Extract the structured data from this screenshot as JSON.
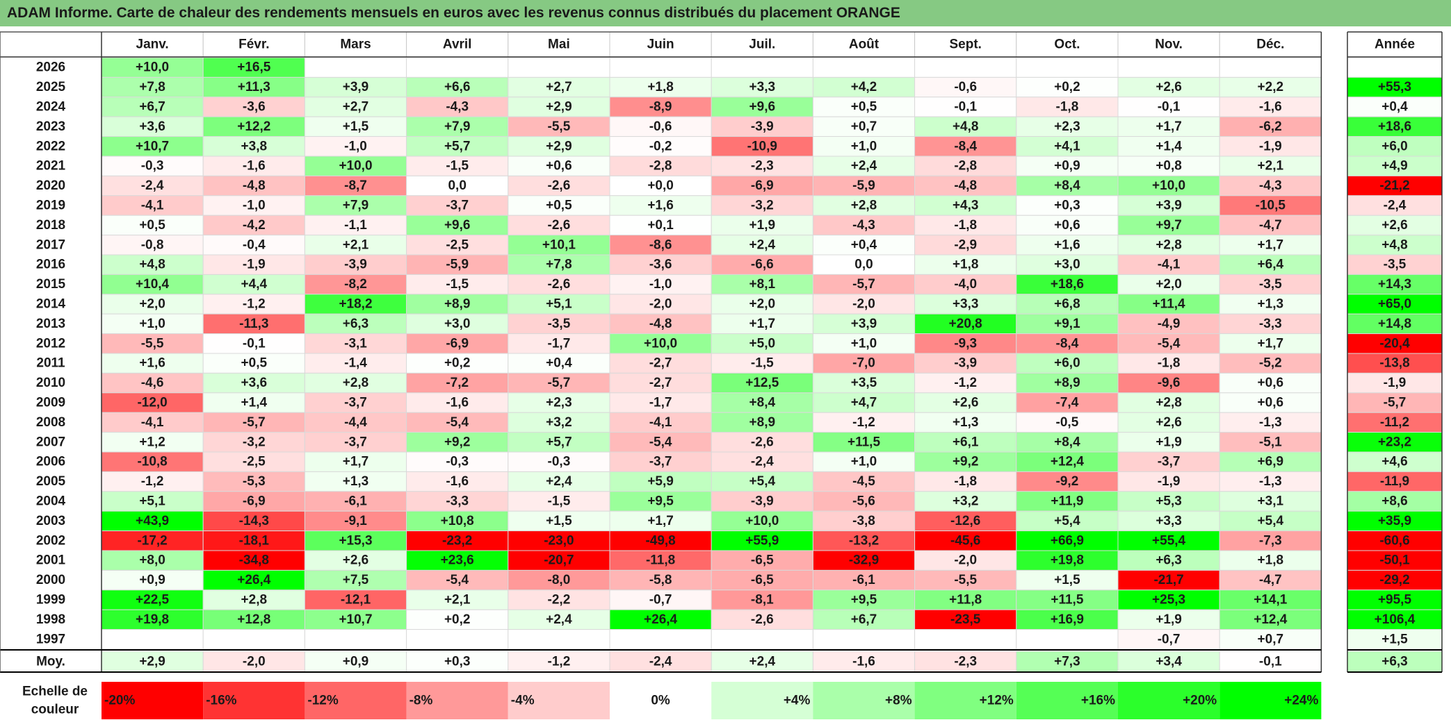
{
  "chart_data": {
    "type": "heatmap",
    "title": "ADAM Informe. Carte de chaleur des rendements mensuels en euros avec les revenus connus distribués du placement ORANGE",
    "months": [
      "Janv.",
      "Févr.",
      "Mars",
      "Avril",
      "Mai",
      "Juin",
      "Juil.",
      "Août",
      "Sept.",
      "Oct.",
      "Nov.",
      "Déc."
    ],
    "year_col_label": "Année",
    "avg_row_label": "Moy.",
    "rows": [
      {
        "year": "2026",
        "values": [
          "+10,0",
          "+16,5",
          "",
          "",
          "",
          "",
          "",
          "",
          "",
          "",
          "",
          ""
        ],
        "annual": ""
      },
      {
        "year": "2025",
        "values": [
          "+7,8",
          "+11,3",
          "+3,9",
          "+6,6",
          "+2,7",
          "+1,8",
          "+3,3",
          "+4,2",
          "-0,6",
          "+0,2",
          "+2,6",
          "+2,2"
        ],
        "annual": "+55,3"
      },
      {
        "year": "2024",
        "values": [
          "+6,7",
          "-3,6",
          "+2,7",
          "-4,3",
          "+2,9",
          "-8,9",
          "+9,6",
          "+0,5",
          "-0,1",
          "-1,8",
          "-0,1",
          "-1,6"
        ],
        "annual": "+0,4"
      },
      {
        "year": "2023",
        "values": [
          "+3,6",
          "+12,2",
          "+1,5",
          "+7,9",
          "-5,5",
          "-0,6",
          "-3,9",
          "+0,7",
          "+4,8",
          "+2,3",
          "+1,7",
          "-6,2"
        ],
        "annual": "+18,6"
      },
      {
        "year": "2022",
        "values": [
          "+10,7",
          "+3,8",
          "-1,0",
          "+5,7",
          "+2,9",
          "-0,2",
          "-10,9",
          "+1,0",
          "-8,4",
          "+4,1",
          "+1,4",
          "-1,9"
        ],
        "annual": "+6,0"
      },
      {
        "year": "2021",
        "values": [
          "-0,3",
          "-1,6",
          "+10,0",
          "-1,5",
          "+0,6",
          "-2,8",
          "-2,3",
          "+2,4",
          "-2,8",
          "+0,9",
          "+0,8",
          "+2,1"
        ],
        "annual": "+4,9"
      },
      {
        "year": "2020",
        "values": [
          "-2,4",
          "-4,8",
          "-8,7",
          "0,0",
          "-2,6",
          "+0,0",
          "-6,9",
          "-5,9",
          "-4,8",
          "+8,4",
          "+10,0",
          "-4,3"
        ],
        "annual": "-21,2"
      },
      {
        "year": "2019",
        "values": [
          "-4,1",
          "-1,0",
          "+7,9",
          "-3,7",
          "+0,5",
          "+1,6",
          "-3,2",
          "+2,8",
          "+4,3",
          "+0,3",
          "+3,9",
          "-10,5"
        ],
        "annual": "-2,4"
      },
      {
        "year": "2018",
        "values": [
          "+0,5",
          "-4,2",
          "-1,1",
          "+9,6",
          "-2,6",
          "+0,1",
          "+1,9",
          "-4,3",
          "-1,8",
          "+0,6",
          "+9,7",
          "-4,7"
        ],
        "annual": "+2,6"
      },
      {
        "year": "2017",
        "values": [
          "-0,8",
          "-0,4",
          "+2,1",
          "-2,5",
          "+10,1",
          "-8,6",
          "+2,4",
          "+0,4",
          "-2,9",
          "+1,6",
          "+2,8",
          "+1,7"
        ],
        "annual": "+4,8"
      },
      {
        "year": "2016",
        "values": [
          "+4,8",
          "-1,9",
          "-3,9",
          "-5,9",
          "+7,8",
          "-3,6",
          "-6,6",
          "0,0",
          "+1,8",
          "+3,0",
          "-4,1",
          "+6,4"
        ],
        "annual": "-3,5"
      },
      {
        "year": "2015",
        "values": [
          "+10,4",
          "+4,4",
          "-8,2",
          "-1,5",
          "-2,6",
          "-1,0",
          "+8,1",
          "-5,7",
          "-4,0",
          "+18,6",
          "+2,0",
          "-3,5"
        ],
        "annual": "+14,3"
      },
      {
        "year": "2014",
        "values": [
          "+2,0",
          "-1,2",
          "+18,2",
          "+8,9",
          "+5,1",
          "-2,0",
          "+2,0",
          "-2,0",
          "+3,3",
          "+6,8",
          "+11,4",
          "+1,3"
        ],
        "annual": "+65,0"
      },
      {
        "year": "2013",
        "values": [
          "+1,0",
          "-11,3",
          "+6,3",
          "+3,0",
          "-3,5",
          "-4,8",
          "+1,7",
          "+3,9",
          "+20,8",
          "+9,1",
          "-4,9",
          "-3,3"
        ],
        "annual": "+14,8"
      },
      {
        "year": "2012",
        "values": [
          "-5,5",
          "-0,1",
          "-3,1",
          "-6,9",
          "-1,7",
          "+10,0",
          "+5,0",
          "+1,0",
          "-9,3",
          "-8,4",
          "-5,4",
          "+1,7"
        ],
        "annual": "-20,4"
      },
      {
        "year": "2011",
        "values": [
          "+1,6",
          "+0,5",
          "-1,4",
          "+0,2",
          "+0,4",
          "-2,7",
          "-1,5",
          "-7,0",
          "-3,9",
          "+6,0",
          "-1,8",
          "-5,2"
        ],
        "annual": "-13,8"
      },
      {
        "year": "2010",
        "values": [
          "-4,6",
          "+3,6",
          "+2,8",
          "-7,2",
          "-5,7",
          "-2,7",
          "+12,5",
          "+3,5",
          "-1,2",
          "+8,9",
          "-9,6",
          "+0,6"
        ],
        "annual": "-1,9"
      },
      {
        "year": "2009",
        "values": [
          "-12,0",
          "+1,4",
          "-3,7",
          "-1,6",
          "+2,3",
          "-1,7",
          "+8,4",
          "+4,7",
          "+2,6",
          "-7,4",
          "+2,8",
          "+0,6"
        ],
        "annual": "-5,7"
      },
      {
        "year": "2008",
        "values": [
          "-4,1",
          "-5,7",
          "-4,4",
          "-5,4",
          "+3,2",
          "-4,1",
          "+8,9",
          "-1,2",
          "+1,3",
          "-0,5",
          "+2,6",
          "-1,3"
        ],
        "annual": "-11,2"
      },
      {
        "year": "2007",
        "values": [
          "+1,2",
          "-3,2",
          "-3,7",
          "+9,2",
          "+5,7",
          "-5,4",
          "-2,6",
          "+11,5",
          "+6,1",
          "+8,4",
          "+1,9",
          "-5,1"
        ],
        "annual": "+23,2"
      },
      {
        "year": "2006",
        "values": [
          "-10,8",
          "-2,5",
          "+1,7",
          "-0,3",
          "-0,3",
          "-3,7",
          "-2,4",
          "+1,0",
          "+9,2",
          "+12,4",
          "-3,7",
          "+6,9"
        ],
        "annual": "+4,6"
      },
      {
        "year": "2005",
        "values": [
          "-1,2",
          "-5,3",
          "+1,3",
          "-1,6",
          "+2,4",
          "+5,9",
          "+5,4",
          "-4,5",
          "-1,8",
          "-9,2",
          "-1,9",
          "-1,3"
        ],
        "annual": "-11,9"
      },
      {
        "year": "2004",
        "values": [
          "+5,1",
          "-6,9",
          "-6,1",
          "-3,3",
          "-1,5",
          "+9,5",
          "-3,9",
          "-5,6",
          "+3,2",
          "+11,9",
          "+5,3",
          "+3,1"
        ],
        "annual": "+8,6"
      },
      {
        "year": "2003",
        "values": [
          "+43,9",
          "-14,3",
          "-9,1",
          "+10,8",
          "+1,5",
          "+1,7",
          "+10,0",
          "-3,8",
          "-12,6",
          "+5,4",
          "+3,3",
          "+5,4"
        ],
        "annual": "+35,9"
      },
      {
        "year": "2002",
        "values": [
          "-17,2",
          "-18,1",
          "+15,3",
          "-23,2",
          "-23,0",
          "-49,8",
          "+55,9",
          "-13,2",
          "-45,6",
          "+66,9",
          "+55,4",
          "-7,3"
        ],
        "annual": "-60,6"
      },
      {
        "year": "2001",
        "values": [
          "+8,0",
          "-34,8",
          "+2,6",
          "+23,6",
          "-20,7",
          "-11,8",
          "-6,5",
          "-32,9",
          "-2,0",
          "+19,8",
          "+6,3",
          "+1,8"
        ],
        "annual": "-50,1"
      },
      {
        "year": "2000",
        "values": [
          "+0,9",
          "+26,4",
          "+7,5",
          "-5,4",
          "-8,0",
          "-5,8",
          "-6,5",
          "-6,1",
          "-5,5",
          "+1,5",
          "-21,7",
          "-4,7"
        ],
        "annual": "-29,2"
      },
      {
        "year": "1999",
        "values": [
          "+22,5",
          "+2,8",
          "-12,1",
          "+2,1",
          "-2,2",
          "-0,7",
          "-8,1",
          "+9,5",
          "+11,8",
          "+11,5",
          "+25,3",
          "+14,1"
        ],
        "annual": "+95,5"
      },
      {
        "year": "1998",
        "values": [
          "+19,8",
          "+12,8",
          "+10,7",
          "+0,2",
          "+2,4",
          "+26,4",
          "-2,6",
          "+6,7",
          "-23,5",
          "+16,9",
          "+1,9",
          "+12,4"
        ],
        "annual": "+106,4"
      },
      {
        "year": "1997",
        "values": [
          "",
          "",
          "",
          "",
          "",
          "",
          "",
          "",
          "",
          "",
          "-0,7",
          "+0,7"
        ],
        "annual": "+1,5"
      }
    ],
    "averages": [
      "+2,9",
      "-2,0",
      "+0,9",
      "+0,3",
      "-1,2",
      "-2,4",
      "+2,4",
      "-1,6",
      "-2,3",
      "+7,3",
      "+3,4",
      "-0,1"
    ],
    "average_annual": "+6,3",
    "scale_label": [
      "Echelle de",
      "couleur"
    ],
    "scale": [
      {
        "label": "-20%",
        "v": -20
      },
      {
        "label": "-16%",
        "v": -16
      },
      {
        "label": "-12%",
        "v": -12
      },
      {
        "label": "-8%",
        "v": -8
      },
      {
        "label": "-4%",
        "v": -4
      },
      {
        "label": "0%",
        "v": 0
      },
      {
        "label": "+4%",
        "v": 4
      },
      {
        "label": "+8%",
        "v": 8
      },
      {
        "label": "+12%",
        "v": 12
      },
      {
        "label": "+16%",
        "v": 16
      },
      {
        "label": "+20%",
        "v": 20
      },
      {
        "label": "+24%",
        "v": 24
      }
    ],
    "colors": {
      "negative": "#ff0000",
      "neutral": "#ffffff",
      "positive": "#00ff00",
      "header": "#86c983"
    },
    "color_domain": [
      -20,
      0,
      24
    ]
  }
}
